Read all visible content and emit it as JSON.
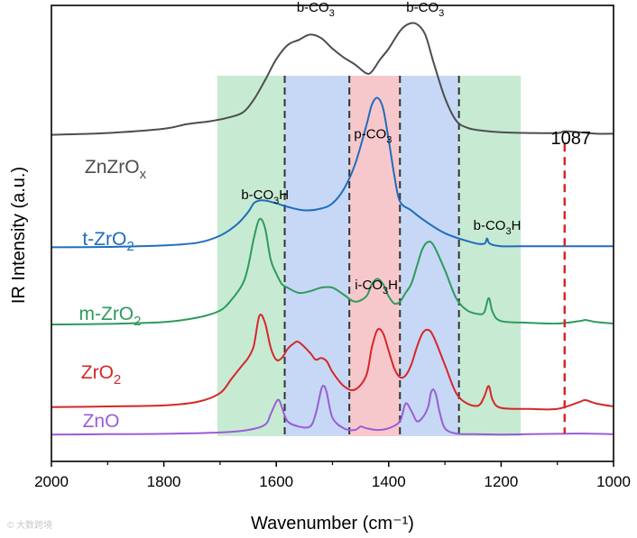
{
  "chart_data": {
    "type": "line",
    "title": "",
    "xlabel": "Wavenumber (cm⁻¹)",
    "ylabel": "IR Intensity (a.u.)",
    "xlim": [
      2000,
      1000
    ],
    "x_reversed": true,
    "x_ticks": [
      2000,
      1800,
      1600,
      1400,
      1200,
      1000
    ],
    "y_ticks": [],
    "grid": false,
    "legend": "none",
    "bands": [
      {
        "name": "b-CO₃H (high)",
        "range": [
          1705,
          1585
        ],
        "color": "#c7ead3"
      },
      {
        "name": "b-CO₃ (high)",
        "range": [
          1585,
          1470
        ],
        "color": "#c6d8f5"
      },
      {
        "name": "p-CO₃ / i-CO₃H",
        "range": [
          1470,
          1380
        ],
        "color": "#f7c8cb"
      },
      {
        "name": "b-CO₃ (low)",
        "range": [
          1380,
          1275
        ],
        "color": "#c6d8f5"
      },
      {
        "name": "b-CO₃H (low)",
        "range": [
          1275,
          1165
        ],
        "color": "#c7ead3"
      }
    ],
    "band_labels": [
      {
        "parts": [
          "b-CO",
          "3",
          ""
        ],
        "at": [
          1530,
          1.205
        ]
      },
      {
        "parts": [
          "b-CO",
          "3",
          ""
        ],
        "at": [
          1335,
          1.205
        ]
      },
      {
        "parts": [
          "p-CO",
          "3",
          ""
        ],
        "at": [
          1428,
          0.845
        ]
      },
      {
        "parts": [
          "b-CO",
          "3",
          "H"
        ],
        "at": [
          1620,
          0.672
        ]
      },
      {
        "parts": [
          "b-CO",
          "3",
          "H"
        ],
        "at": [
          1207,
          0.585
        ]
      },
      {
        "parts": [
          "i-CO",
          "3",
          "H"
        ],
        "at": [
          1422,
          0.415
        ]
      }
    ],
    "dashed_lines": [
      1585,
      1470,
      1380,
      1275
    ],
    "marker_line": {
      "x": 1087,
      "y_range": [
        0.005,
        0.83
      ],
      "color": "#d62728"
    },
    "marker_label": "1087",
    "series": [
      {
        "name": "ZnZrOx",
        "label_parts": [
          "ZnZrO",
          "x"
        ],
        "color": "#4d4d4d",
        "x": [
          2000,
          1900,
          1800,
          1760,
          1720,
          1690,
          1660,
          1640,
          1620,
          1600,
          1580,
          1560,
          1540,
          1520,
          1500,
          1480,
          1460,
          1440,
          1430,
          1415,
          1400,
          1380,
          1365,
          1350,
          1335,
          1320,
          1300,
          1280,
          1260,
          1240,
          1200,
          1150,
          1100,
          1087,
          1060,
          1030,
          1000
        ],
        "y": [
          0.855,
          0.86,
          0.872,
          0.885,
          0.893,
          0.902,
          0.918,
          0.955,
          1.01,
          1.07,
          1.11,
          1.125,
          1.14,
          1.13,
          1.1,
          1.075,
          1.055,
          1.03,
          1.035,
          1.07,
          1.1,
          1.15,
          1.17,
          1.17,
          1.14,
          1.06,
          0.96,
          0.895,
          0.875,
          0.868,
          0.862,
          0.86,
          0.86,
          0.865,
          0.862,
          0.858,
          0.858
        ]
      },
      {
        "name": "t-ZrO2",
        "label_parts": [
          "t-ZrO",
          "2"
        ],
        "color": "#1f6cbf",
        "x": [
          2000,
          1900,
          1800,
          1740,
          1700,
          1670,
          1650,
          1640,
          1630,
          1620,
          1600,
          1580,
          1550,
          1520,
          1500,
          1480,
          1460,
          1440,
          1430,
          1420,
          1410,
          1400,
          1390,
          1380,
          1360,
          1340,
          1300,
          1250,
          1230,
          1225,
          1220,
          1200,
          1150,
          1100,
          1050,
          1000
        ],
        "y": [
          0.535,
          0.536,
          0.54,
          0.548,
          0.568,
          0.6,
          0.635,
          0.66,
          0.668,
          0.668,
          0.66,
          0.65,
          0.64,
          0.645,
          0.66,
          0.7,
          0.77,
          0.88,
          0.94,
          0.96,
          0.93,
          0.84,
          0.74,
          0.665,
          0.64,
          0.615,
          0.575,
          0.548,
          0.545,
          0.56,
          0.545,
          0.538,
          0.538,
          0.538,
          0.538,
          0.538
        ]
      },
      {
        "name": "m-ZrO2",
        "label_parts": [
          "m-ZrO",
          "2"
        ],
        "color": "#2e9a5b",
        "x": [
          2000,
          1900,
          1800,
          1740,
          1700,
          1680,
          1660,
          1650,
          1640,
          1630,
          1620,
          1610,
          1600,
          1590,
          1580,
          1560,
          1540,
          1520,
          1500,
          1480,
          1460,
          1440,
          1430,
          1420,
          1410,
          1400,
          1390,
          1380,
          1370,
          1360,
          1350,
          1340,
          1330,
          1320,
          1300,
          1280,
          1260,
          1240,
          1230,
          1222,
          1215,
          1200,
          1150,
          1100,
          1060,
          1050,
          1030,
          1000
        ],
        "y": [
          0.315,
          0.317,
          0.322,
          0.335,
          0.355,
          0.385,
          0.43,
          0.48,
          0.56,
          0.615,
          0.59,
          0.5,
          0.46,
          0.43,
          0.42,
          0.405,
          0.41,
          0.42,
          0.42,
          0.4,
          0.38,
          0.395,
          0.43,
          0.445,
          0.43,
          0.395,
          0.375,
          0.38,
          0.405,
          0.43,
          0.48,
          0.53,
          0.55,
          0.54,
          0.47,
          0.39,
          0.355,
          0.345,
          0.35,
          0.39,
          0.35,
          0.325,
          0.32,
          0.318,
          0.325,
          0.328,
          0.322,
          0.318
        ]
      },
      {
        "name": "ZrO2",
        "label_parts": [
          "ZrO",
          "2"
        ],
        "color": "#d62728",
        "x": [
          2000,
          1900,
          1800,
          1740,
          1700,
          1680,
          1660,
          1650,
          1640,
          1630,
          1620,
          1610,
          1600,
          1590,
          1580,
          1570,
          1560,
          1540,
          1530,
          1520,
          1510,
          1500,
          1480,
          1460,
          1440,
          1430,
          1420,
          1410,
          1400,
          1390,
          1380,
          1370,
          1360,
          1350,
          1340,
          1330,
          1320,
          1300,
          1280,
          1260,
          1240,
          1230,
          1222,
          1215,
          1200,
          1150,
          1100,
          1060,
          1050,
          1030,
          1000
        ],
        "y": [
          0.08,
          0.082,
          0.085,
          0.095,
          0.12,
          0.16,
          0.2,
          0.22,
          0.255,
          0.34,
          0.32,
          0.25,
          0.215,
          0.22,
          0.245,
          0.26,
          0.265,
          0.235,
          0.215,
          0.22,
          0.21,
          0.18,
          0.14,
          0.13,
          0.17,
          0.25,
          0.3,
          0.29,
          0.24,
          0.19,
          0.165,
          0.17,
          0.2,
          0.25,
          0.29,
          0.3,
          0.28,
          0.2,
          0.12,
          0.09,
          0.085,
          0.11,
          0.14,
          0.1,
          0.078,
          0.075,
          0.075,
          0.095,
          0.1,
          0.09,
          0.082
        ]
      },
      {
        "name": "ZnO",
        "label_parts": [
          "ZnO",
          ""
        ],
        "color": "#9b5cd6",
        "x": [
          2000,
          1900,
          1800,
          1700,
          1650,
          1620,
          1610,
          1600,
          1595,
          1590,
          1580,
          1560,
          1540,
          1530,
          1520,
          1515,
          1510,
          1500,
          1480,
          1460,
          1450,
          1440,
          1420,
          1400,
          1380,
          1370,
          1360,
          1350,
          1340,
          1330,
          1325,
          1320,
          1315,
          1310,
          1300,
          1280,
          1250,
          1200,
          1150,
          1100,
          1050,
          1000
        ],
        "y": [
          0.002,
          0.003,
          0.004,
          0.008,
          0.015,
          0.03,
          0.06,
          0.095,
          0.1,
          0.08,
          0.04,
          0.025,
          0.025,
          0.06,
          0.13,
          0.14,
          0.12,
          0.05,
          0.02,
          0.015,
          0.025,
          0.02,
          0.015,
          0.02,
          0.04,
          0.09,
          0.07,
          0.04,
          0.05,
          0.08,
          0.12,
          0.13,
          0.11,
          0.07,
          0.02,
          0.005,
          0.003,
          0.002,
          0.003,
          0.004,
          0.005,
          0.003
        ]
      }
    ]
  },
  "watermark": "© 大数跨境"
}
